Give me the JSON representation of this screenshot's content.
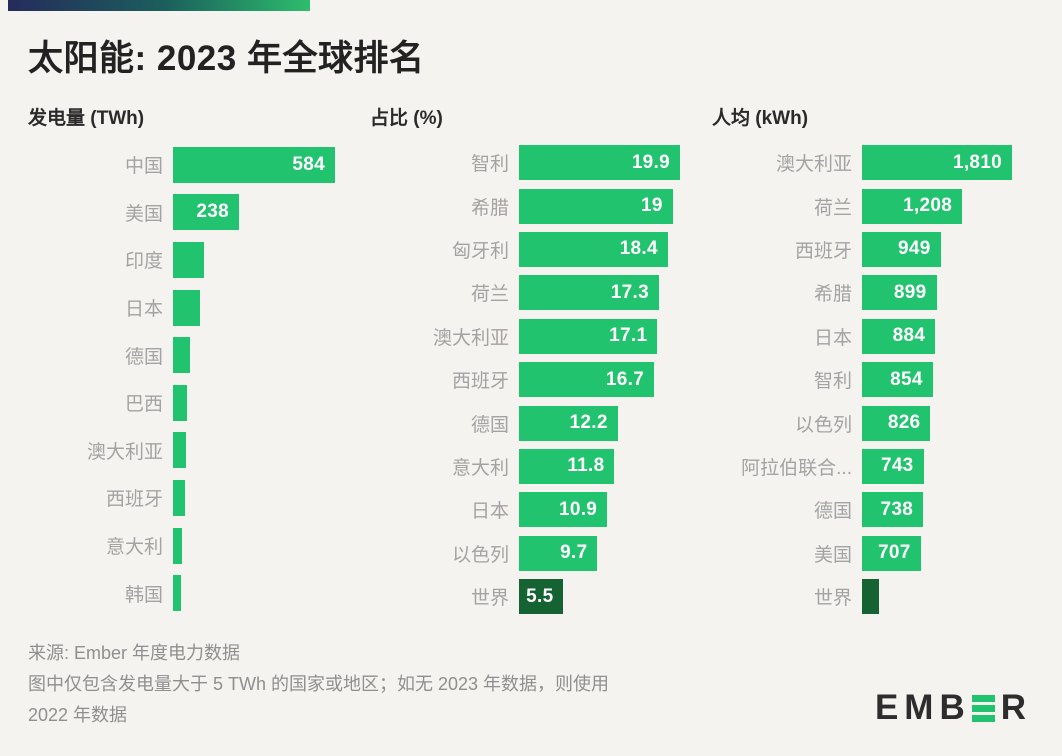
{
  "meta": {
    "background_color": "#f4f3f0",
    "bar_green": "#22c36e",
    "bar_dark_green": "#156333",
    "gradient_bar_colors": [
      "#262b5b",
      "#1b5f5c",
      "#2dbd6d"
    ],
    "label_gray": "#a3a3a3"
  },
  "title": "太阳能: 2023 年全球排名",
  "chart_data": [
    {
      "type": "bar",
      "orientation": "horizontal",
      "title": "发电量 (TWh)",
      "unit": "TWh",
      "axis_max": 584,
      "legend_position": "none",
      "grid": false,
      "categories": [
        "中国",
        "美国",
        "印度",
        "日本",
        "德国",
        "巴西",
        "澳大利亚",
        "西班牙",
        "意大利",
        "韩国"
      ],
      "values": [
        584,
        238,
        113,
        97,
        61,
        51,
        48,
        45,
        31,
        29
      ],
      "value_labels": [
        "584",
        "238",
        "",
        "",
        "",
        "",
        "",
        "",
        "",
        ""
      ],
      "dark_index": -1
    },
    {
      "type": "bar",
      "orientation": "horizontal",
      "title": "占比 (%)",
      "unit": "%",
      "axis_max": 19.9,
      "legend_position": "none",
      "grid": false,
      "categories": [
        "智利",
        "希腊",
        "匈牙利",
        "荷兰",
        "澳大利亚",
        "西班牙",
        "德国",
        "意大利",
        "日本",
        "以色列",
        "世界"
      ],
      "values": [
        19.9,
        19,
        18.4,
        17.3,
        17.1,
        16.7,
        12.2,
        11.8,
        10.9,
        9.7,
        5.5
      ],
      "value_labels": [
        "19.9",
        "19",
        "18.4",
        "17.3",
        "17.1",
        "16.7",
        "12.2",
        "11.8",
        "10.9",
        "9.7",
        "5.5"
      ],
      "dark_index": 10
    },
    {
      "type": "bar",
      "orientation": "horizontal",
      "title": "人均 (kWh)",
      "unit": "kWh",
      "axis_max": 1810,
      "legend_position": "none",
      "grid": false,
      "categories": [
        "澳大利亚",
        "荷兰",
        "西班牙",
        "希腊",
        "日本",
        "智利",
        "以色列",
        "阿拉伯联合...",
        "德国",
        "美国",
        "世界"
      ],
      "values": [
        1810,
        1208,
        949,
        899,
        884,
        854,
        826,
        743,
        738,
        707,
        200
      ],
      "value_labels": [
        "1,810",
        "1,208",
        "949",
        "899",
        "884",
        "854",
        "826",
        "743",
        "738",
        "707",
        ""
      ],
      "dark_index": 10
    }
  ],
  "footer": {
    "source": "来源: Ember 年度电力数据",
    "note1": "图中仅包含发电量大于 5 TWh 的国家或地区；如无 2023 年数据，则使用",
    "note2": "2022 年数据"
  },
  "logo": {
    "left": "EMB",
    "right": "R",
    "green_e_icon": "ember-green-e-icon"
  }
}
